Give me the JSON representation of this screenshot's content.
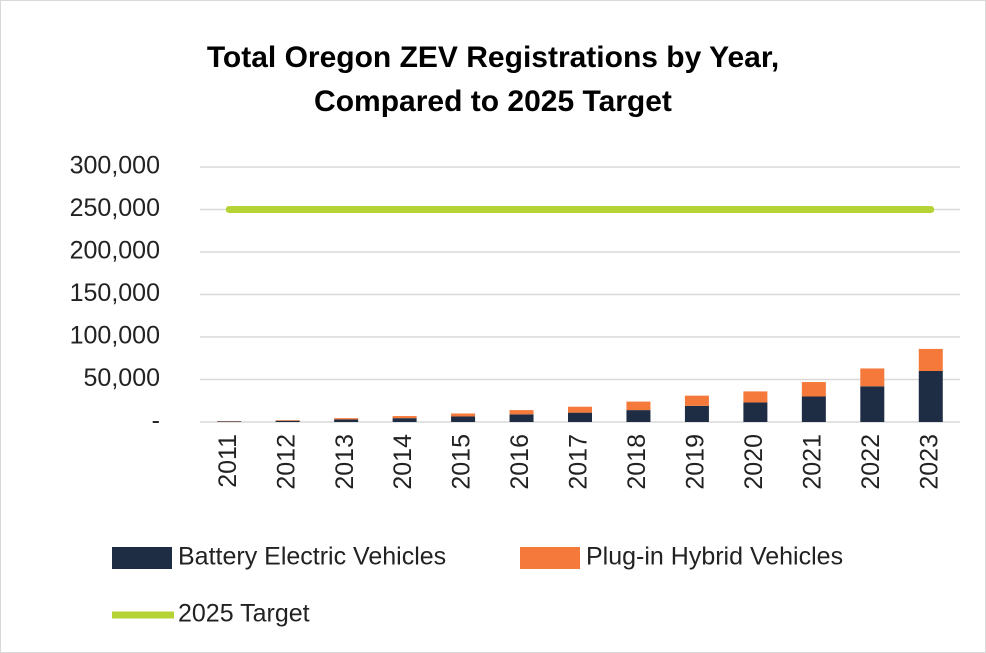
{
  "chart_data": {
    "type": "stacked-bar-line",
    "title": "Total Oregon ZEV Registrations by Year, Compared to 2025 Target",
    "categories": [
      "2011",
      "2012",
      "2013",
      "2014",
      "2015",
      "2016",
      "2017",
      "2018",
      "2019",
      "2020",
      "2021",
      "2022",
      "2023"
    ],
    "series": [
      {
        "name": "Battery Electric Vehicles",
        "color": "#1f2d44",
        "type": "bar",
        "values": [
          700,
          1500,
          3000,
          4500,
          6500,
          9000,
          11000,
          14000,
          19000,
          23000,
          30000,
          42000,
          60000
        ]
      },
      {
        "name": "Plug-in Hybrid Vehicles",
        "color": "#f4793b",
        "type": "bar",
        "values": [
          300,
          700,
          1500,
          2500,
          3500,
          5000,
          7000,
          10000,
          12000,
          13000,
          17000,
          21000,
          26000
        ]
      },
      {
        "name": "2025 Target",
        "color": "#b5d334",
        "type": "line",
        "values": [
          250000,
          250000,
          250000,
          250000,
          250000,
          250000,
          250000,
          250000,
          250000,
          250000,
          250000,
          250000,
          250000
        ]
      }
    ],
    "ylim": [
      0,
      300000
    ],
    "yticks": [
      {
        "value": 0,
        "label": "-"
      },
      {
        "value": 50000,
        "label": "50,000"
      },
      {
        "value": 100000,
        "label": "100,000"
      },
      {
        "value": 150000,
        "label": "150,000"
      },
      {
        "value": 200000,
        "label": "200,000"
      },
      {
        "value": 250000,
        "label": "250,000"
      },
      {
        "value": 300000,
        "label": "300,000"
      }
    ],
    "grid": true
  }
}
